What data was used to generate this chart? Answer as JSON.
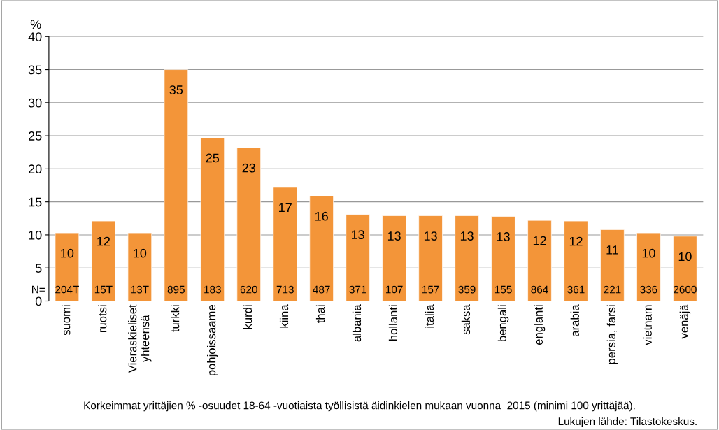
{
  "chart_data": {
    "type": "bar",
    "ylabel": "%",
    "categories": [
      "suomi",
      "ruotsi",
      "Vieraskieliset\nyhteensä",
      "turkki",
      "pohjoissaame",
      "kurdi",
      "kiina",
      "thai",
      "albania",
      "hollanti",
      "italia",
      "saksa",
      "bengali",
      "englanti",
      "arabia",
      "persia, farsi",
      "vietnam",
      "venäjä"
    ],
    "values": [
      10.3,
      12.1,
      10.3,
      35.0,
      24.7,
      23.2,
      17.2,
      15.9,
      13.1,
      12.9,
      12.9,
      12.9,
      12.8,
      12.2,
      12.1,
      10.8,
      10.3,
      9.8
    ],
    "value_labels": [
      "10",
      "12",
      "10",
      "35",
      "25",
      "23",
      "17",
      "16",
      "13",
      "13",
      "13",
      "13",
      "13",
      "12",
      "12",
      "11",
      "10",
      "10"
    ],
    "color": "#f39539",
    "ylim": [
      0,
      40
    ],
    "yticks": [
      0,
      5,
      10,
      15,
      20,
      25,
      30,
      35,
      40
    ],
    "grid": "y",
    "legend": false,
    "annotations": [
      "N=",
      "204T",
      "15T",
      "13T",
      "895",
      "183",
      "620",
      "713",
      "487",
      "371",
      "107",
      "157",
      "359",
      "155",
      "864",
      "361",
      "221",
      "336",
      "2600",
      "Korkeimmat yrittäjien % -osuudet 18-64 -vuotiaista työllisistä äidinkielen mukaan vuonna  2015 (minimi 100 yrittäjää).",
      "Lukujen lähde: Tilastokeskus."
    ]
  }
}
